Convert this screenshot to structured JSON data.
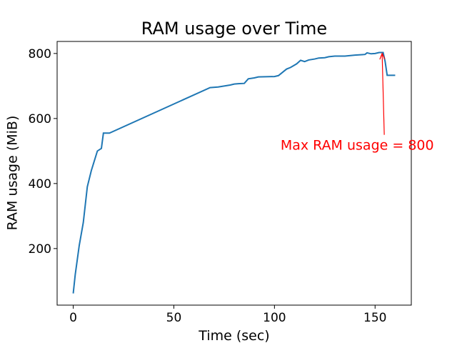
{
  "chart_data": {
    "type": "line",
    "title": "RAM usage over Time",
    "x_label": "Time (sec)",
    "y_label": "RAM usage (MiB)",
    "x": [
      0,
      1,
      3,
      5,
      7,
      9,
      10,
      12,
      14,
      15,
      18,
      68,
      72,
      75,
      78,
      80,
      82,
      85,
      87,
      90,
      92,
      100,
      102,
      106,
      108,
      111,
      113,
      115,
      117,
      120,
      122,
      125,
      127,
      130,
      135,
      140,
      145,
      146,
      148,
      150,
      152,
      154,
      155,
      156,
      160
    ],
    "series": [
      {
        "name": "RAM usage",
        "color": "#1f77b4",
        "values": [
          62,
          120,
          210,
          280,
          390,
          440,
          460,
          500,
          508,
          555,
          555,
          695,
          697,
          700,
          703,
          706,
          707,
          708,
          722,
          725,
          728,
          729,
          732,
          752,
          757,
          768,
          779,
          775,
          780,
          783,
          786,
          787,
          790,
          792,
          792,
          795,
          797,
          802,
          799,
          800,
          803,
          803,
          775,
          733,
          733
        ]
      }
    ],
    "xlim": [
      -8,
      168
    ],
    "ylim": [
      26,
      837
    ],
    "xticks": [
      0,
      50,
      100,
      150
    ],
    "yticks": [
      200,
      400,
      600,
      800
    ],
    "grid": false,
    "annotation": {
      "text": "Max RAM usage = 800",
      "color": "#ff0000",
      "xy": [
        153.5,
        800
      ],
      "xytext": [
        103,
        519
      ]
    }
  }
}
